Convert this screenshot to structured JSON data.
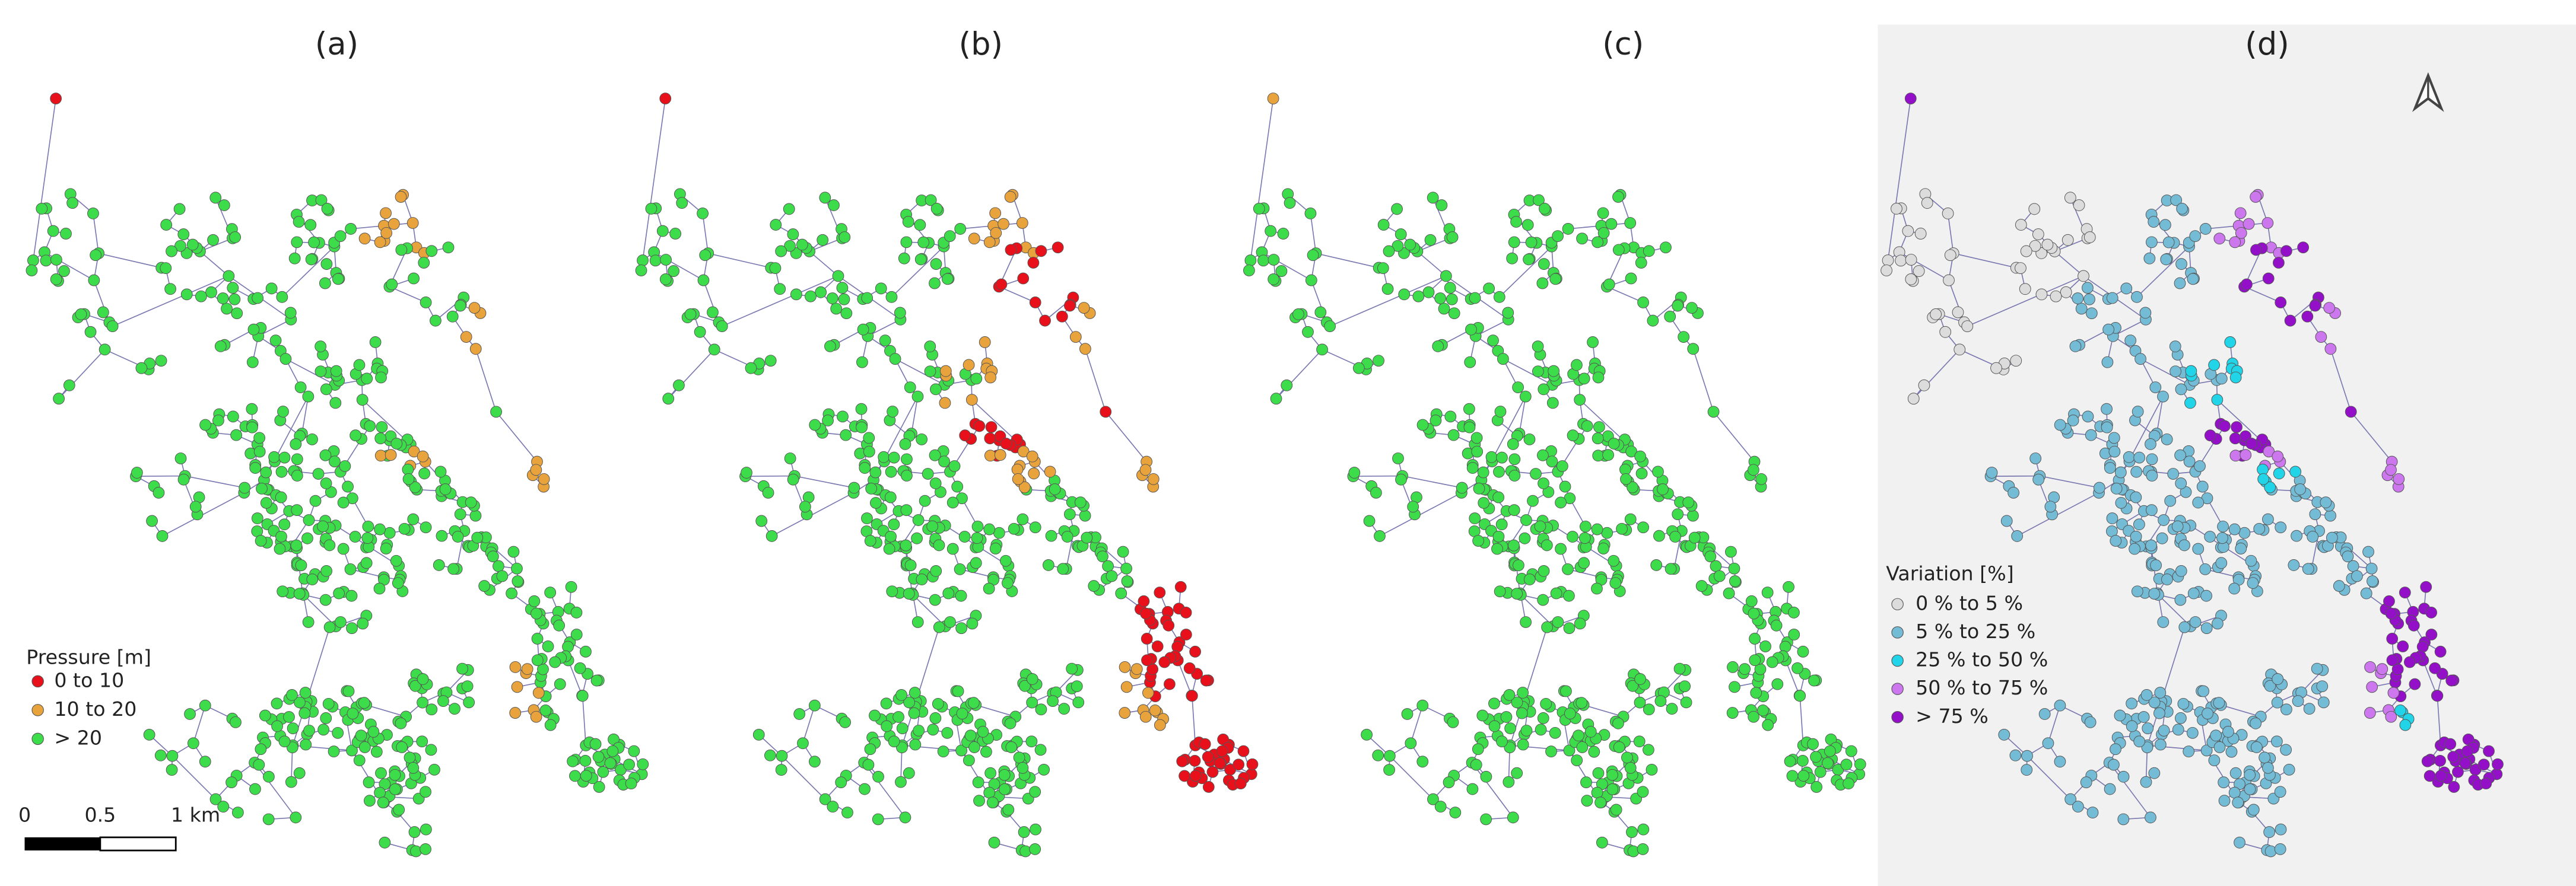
{
  "panels": [
    {
      "label": "(a)"
    },
    {
      "label": "(b)"
    },
    {
      "label": "(c)"
    },
    {
      "label": "(d)"
    }
  ],
  "pressure_legend": {
    "title": "Pressure [m]",
    "items": [
      {
        "label": "0 to 10",
        "color": "#e8101a"
      },
      {
        "label": "10 to 20",
        "color": "#e8a33c"
      },
      {
        "label": "> 20",
        "color": "#3ddc4a"
      }
    ]
  },
  "scale_bar": {
    "labels": [
      "0",
      "0.5",
      "1 km"
    ]
  },
  "variation_legend": {
    "title": "Variation [%]",
    "items": [
      {
        "label": "0 % to 5 %",
        "color": "#dcdcdc"
      },
      {
        "label": "5 % to 25 %",
        "color": "#74bcd6"
      },
      {
        "label": "25 % to 50 %",
        "color": "#22d4e8"
      },
      {
        "label": "50 % to 75 %",
        "color": "#cc77ee"
      },
      {
        "label": "> 75 %",
        "color": "#9410c8"
      }
    ]
  }
}
